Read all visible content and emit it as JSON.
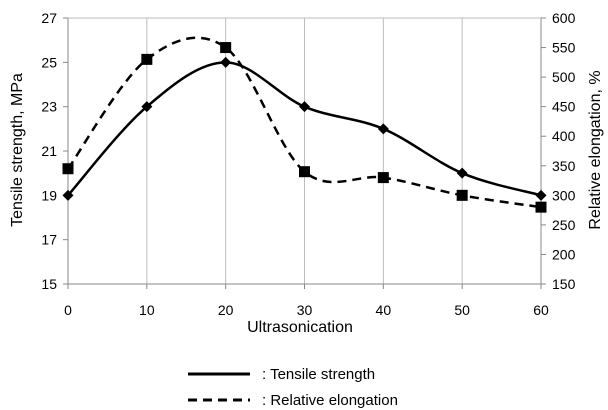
{
  "chart_data": {
    "type": "line",
    "x": [
      0,
      10,
      20,
      30,
      40,
      50,
      60
    ],
    "xlabel": "Ultrasonication",
    "xlim": [
      0,
      60
    ],
    "x_ticks": [
      "0",
      "10",
      "20",
      "30",
      "40",
      "50",
      "60"
    ],
    "y_left": {
      "label": "Tensile strength, MPa",
      "lim": [
        15,
        27
      ],
      "ticks": [
        "15",
        "17",
        "19",
        "21",
        "23",
        "25",
        "27"
      ]
    },
    "y_right": {
      "label": "Relative elongation, %",
      "lim": [
        150,
        600
      ],
      "ticks": [
        "150",
        "200",
        "250",
        "300",
        "350",
        "400",
        "450",
        "500",
        "550",
        "600"
      ]
    },
    "grid": "vertical",
    "series": [
      {
        "name": "Tensile strength",
        "axis": "left",
        "style": "solid",
        "marker": "diamond",
        "color": "#000000",
        "values": [
          19,
          23,
          25,
          23,
          22,
          20,
          19
        ]
      },
      {
        "name": "Relative elongation",
        "axis": "right",
        "style": "dashed",
        "marker": "square",
        "color": "#000000",
        "values": [
          345,
          530,
          550,
          340,
          330,
          300,
          280
        ]
      }
    ],
    "legend": {
      "position": "bottom",
      "entries": [
        ": Tensile strength",
        ": Relative elongation"
      ]
    }
  }
}
